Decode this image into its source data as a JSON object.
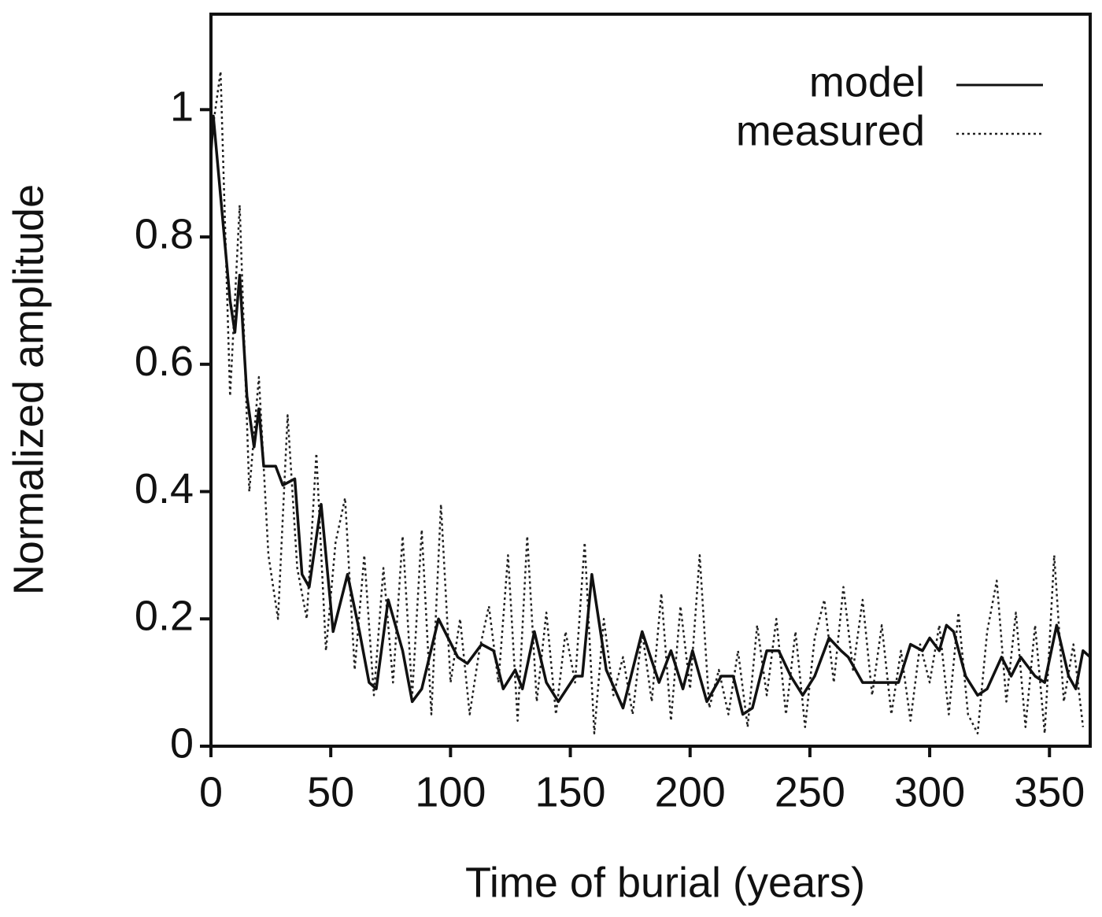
{
  "chart_data": {
    "type": "line",
    "xlabel": "Time of burial (years)",
    "ylabel": "Normalized amplitude",
    "xlim": [
      0,
      367
    ],
    "ylim": [
      0,
      1.15
    ],
    "xticks": [
      0,
      50,
      100,
      150,
      200,
      250,
      300,
      350
    ],
    "yticks": [
      0,
      0.2,
      0.4,
      0.6,
      0.8,
      1
    ],
    "legend": "upper right",
    "series": [
      {
        "name": "model",
        "color": "#111111",
        "linestyle": "solid",
        "x": [
          0,
          1,
          8,
          10,
          12,
          15,
          18,
          20,
          22,
          27,
          30,
          35,
          38,
          41,
          46,
          51,
          57,
          62,
          66,
          69,
          74,
          80,
          84,
          88,
          95,
          103,
          107,
          113,
          118,
          122,
          127,
          130,
          135,
          140,
          145,
          152,
          155,
          159,
          165,
          172,
          180,
          187,
          192,
          197,
          201,
          207,
          213,
          218,
          222,
          226,
          232,
          237,
          242,
          247,
          252,
          258,
          263,
          266,
          272,
          283,
          287,
          292,
          297,
          300,
          304,
          307,
          310,
          315,
          320,
          324,
          330,
          334,
          338,
          344,
          348,
          353,
          358,
          361,
          364,
          367
        ],
        "values": [
          0.93,
          0.99,
          0.7,
          0.65,
          0.74,
          0.55,
          0.47,
          0.53,
          0.44,
          0.44,
          0.41,
          0.42,
          0.27,
          0.25,
          0.38,
          0.18,
          0.27,
          0.18,
          0.1,
          0.09,
          0.23,
          0.15,
          0.07,
          0.09,
          0.2,
          0.14,
          0.13,
          0.16,
          0.15,
          0.09,
          0.12,
          0.09,
          0.18,
          0.1,
          0.07,
          0.11,
          0.11,
          0.27,
          0.12,
          0.06,
          0.18,
          0.1,
          0.15,
          0.09,
          0.15,
          0.07,
          0.11,
          0.11,
          0.05,
          0.06,
          0.15,
          0.15,
          0.11,
          0.08,
          0.11,
          0.17,
          0.15,
          0.14,
          0.1,
          0.1,
          0.1,
          0.16,
          0.15,
          0.17,
          0.15,
          0.19,
          0.18,
          0.11,
          0.08,
          0.09,
          0.14,
          0.11,
          0.14,
          0.11,
          0.1,
          0.19,
          0.11,
          0.09,
          0.15,
          0.14
        ]
      },
      {
        "name": "measured",
        "color": "#222222",
        "linestyle": "dotted",
        "x": [
          0,
          4,
          8,
          12,
          16,
          20,
          24,
          28,
          32,
          36,
          40,
          44,
          48,
          52,
          56,
          60,
          64,
          68,
          72,
          76,
          80,
          84,
          88,
          92,
          96,
          100,
          104,
          108,
          112,
          116,
          120,
          124,
          128,
          132,
          136,
          140,
          144,
          148,
          152,
          156,
          160,
          164,
          168,
          172,
          176,
          180,
          184,
          188,
          192,
          196,
          200,
          204,
          208,
          212,
          216,
          220,
          224,
          228,
          232,
          236,
          240,
          244,
          248,
          252,
          256,
          260,
          264,
          268,
          272,
          276,
          280,
          284,
          288,
          292,
          296,
          300,
          304,
          308,
          312,
          316,
          320,
          324,
          328,
          332,
          336,
          340,
          344,
          348,
          352,
          356,
          360,
          364
        ],
        "values": [
          0.95,
          1.06,
          0.55,
          0.85,
          0.4,
          0.58,
          0.3,
          0.2,
          0.52,
          0.28,
          0.2,
          0.46,
          0.15,
          0.32,
          0.39,
          0.12,
          0.3,
          0.08,
          0.28,
          0.1,
          0.33,
          0.08,
          0.34,
          0.05,
          0.38,
          0.1,
          0.2,
          0.05,
          0.15,
          0.22,
          0.1,
          0.3,
          0.04,
          0.33,
          0.07,
          0.21,
          0.05,
          0.18,
          0.1,
          0.32,
          0.02,
          0.2,
          0.08,
          0.14,
          0.05,
          0.18,
          0.07,
          0.24,
          0.04,
          0.22,
          0.09,
          0.3,
          0.06,
          0.12,
          0.05,
          0.15,
          0.03,
          0.19,
          0.08,
          0.2,
          0.05,
          0.18,
          0.03,
          0.17,
          0.23,
          0.1,
          0.25,
          0.12,
          0.23,
          0.08,
          0.19,
          0.05,
          0.15,
          0.04,
          0.16,
          0.1,
          0.19,
          0.05,
          0.21,
          0.05,
          0.02,
          0.18,
          0.26,
          0.07,
          0.21,
          0.03,
          0.19,
          0.02,
          0.3,
          0.07,
          0.16,
          0.03
        ]
      }
    ]
  }
}
